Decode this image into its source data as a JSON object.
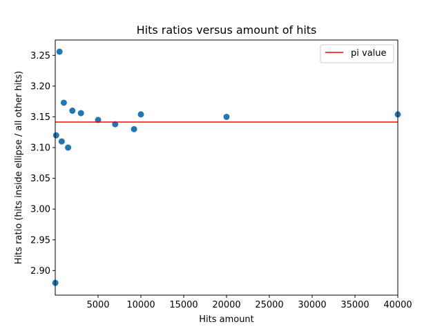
{
  "chart_data": {
    "type": "scatter",
    "title": "Hits ratios versus amount of hits",
    "xlabel": "Hits amount",
    "ylabel": "Hits ratio (hits inside ellipse / all other hits)",
    "xlim": [
      0,
      40000
    ],
    "ylim": [
      2.86,
      3.275
    ],
    "xticks": [
      5000,
      10000,
      15000,
      20000,
      25000,
      30000,
      35000,
      40000
    ],
    "xtick_labels": [
      "5000",
      "10000",
      "15000",
      "20000",
      "25000",
      "30000",
      "35000",
      "40000"
    ],
    "yticks": [
      2.9,
      2.95,
      3.0,
      3.05,
      3.1,
      3.15,
      3.2,
      3.25
    ],
    "ytick_labels": [
      "2.90",
      "2.95",
      "3.00",
      "3.05",
      "3.10",
      "3.15",
      "3.20",
      "3.25"
    ],
    "grid": false,
    "legend_position": "top-right",
    "series": [
      {
        "kind": "scatter",
        "color": "#1f77b4",
        "points": [
          {
            "x": 10,
            "y": 2.88
          },
          {
            "x": 100,
            "y": 3.12
          },
          {
            "x": 500,
            "y": 3.256
          },
          {
            "x": 750,
            "y": 3.11
          },
          {
            "x": 1000,
            "y": 3.173
          },
          {
            "x": 1500,
            "y": 3.1
          },
          {
            "x": 2000,
            "y": 3.16
          },
          {
            "x": 3000,
            "y": 3.156
          },
          {
            "x": 5000,
            "y": 3.145
          },
          {
            "x": 7000,
            "y": 3.138
          },
          {
            "x": 9200,
            "y": 3.13
          },
          {
            "x": 10000,
            "y": 3.154
          },
          {
            "x": 20000,
            "y": 3.15
          },
          {
            "x": 40000,
            "y": 3.154
          }
        ]
      },
      {
        "kind": "hline",
        "name": "pi value",
        "color": "#ff0000",
        "y": 3.14159
      }
    ]
  }
}
